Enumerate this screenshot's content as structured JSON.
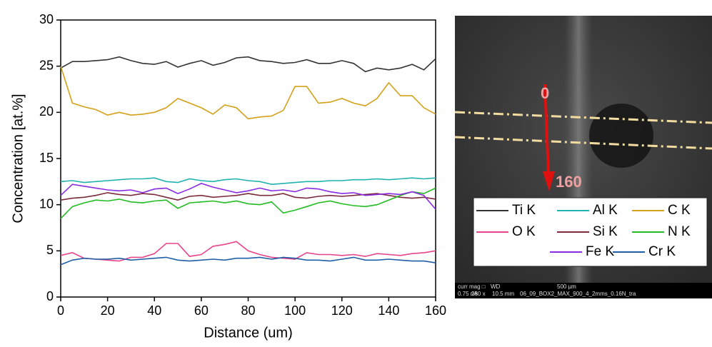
{
  "chart_data": {
    "type": "line",
    "x_label": "Distance (um)",
    "y_label": "Concentration [at.%]",
    "xlim": [
      0,
      160
    ],
    "ylim": [
      0,
      30
    ],
    "xticks": [
      0,
      20,
      40,
      60,
      80,
      100,
      120,
      140,
      160
    ],
    "yticks": [
      0,
      5,
      10,
      15,
      20,
      25,
      30
    ],
    "x": [
      0,
      5,
      10,
      15,
      20,
      25,
      30,
      35,
      40,
      45,
      50,
      55,
      60,
      65,
      70,
      75,
      80,
      85,
      90,
      95,
      100,
      105,
      110,
      115,
      120,
      125,
      130,
      135,
      140,
      145,
      150,
      155,
      160
    ],
    "series": [
      {
        "name": "Ti K",
        "color": "#333333",
        "values": [
          24.8,
          25.5,
          25.5,
          25.6,
          25.7,
          26,
          25.6,
          25.3,
          25.2,
          25.5,
          24.9,
          25.3,
          25.6,
          25.1,
          25.4,
          25.9,
          26,
          25.6,
          25.5,
          25.3,
          25.4,
          25.7,
          25.3,
          25.3,
          25.6,
          25.3,
          24.4,
          24.8,
          24.6,
          24.8,
          25.2,
          24.6,
          25.8
        ]
      },
      {
        "name": "Al K",
        "color": "#20b2b0",
        "values": [
          12.5,
          12.6,
          12.4,
          12.5,
          12.6,
          12.7,
          12.8,
          12.8,
          12.9,
          12.5,
          12.4,
          12.8,
          12.6,
          12.5,
          12.7,
          12.8,
          12.6,
          12.5,
          12.2,
          12.3,
          12.4,
          12.5,
          12.5,
          12.6,
          12.6,
          12.7,
          12.7,
          12.8,
          12.7,
          12.8,
          12.9,
          12.8,
          12.9
        ]
      },
      {
        "name": "C K",
        "color": "#d4a017",
        "values": [
          25,
          21,
          20.6,
          20.3,
          19.7,
          20,
          19.7,
          19.8,
          20,
          20.5,
          21.5,
          21,
          20.5,
          19.8,
          20.8,
          20.5,
          19.3,
          19.5,
          19.6,
          20.2,
          22.8,
          22.8,
          21,
          21.1,
          21.5,
          21,
          20.7,
          21.5,
          23.2,
          21.8,
          21.8,
          20.5,
          19.8
        ]
      },
      {
        "name": "O K",
        "color": "#e8438c",
        "values": [
          4.5,
          4.8,
          4.2,
          4.1,
          4,
          3.9,
          4.3,
          4.3,
          4.7,
          5.8,
          5.8,
          4.4,
          4.6,
          5.5,
          5.7,
          6,
          5,
          4.6,
          4.3,
          4.2,
          4.1,
          4.8,
          4.6,
          4.6,
          4.5,
          4.6,
          4.4,
          4.7,
          4.6,
          4.5,
          4.7,
          4.8,
          5
        ]
      },
      {
        "name": "Si K",
        "color": "#7b2a3a",
        "values": [
          10.5,
          10.7,
          10.8,
          11,
          11.3,
          11.1,
          11,
          11.2,
          11.1,
          10.8,
          10.5,
          10.9,
          11,
          10.8,
          10.9,
          11,
          11.2,
          11,
          11,
          11.2,
          10.8,
          10.7,
          10.9,
          11,
          10.9,
          11,
          11.1,
          11.2,
          11,
          10.8,
          10.7,
          10.8,
          10.6
        ]
      },
      {
        "name": "N K",
        "color": "#22bb22",
        "values": [
          8.5,
          9.8,
          10.2,
          10.5,
          10.4,
          10.6,
          10.3,
          10.2,
          10.4,
          10.5,
          9.6,
          10.2,
          10.3,
          10.4,
          10.2,
          10.4,
          10.1,
          10,
          10.3,
          9.1,
          9.4,
          9.8,
          10.2,
          10.4,
          10.1,
          9.9,
          9.8,
          10,
          10.5,
          11,
          11.4,
          11.2,
          11.8
        ]
      },
      {
        "name": "Fe K",
        "color": "#8a2be2",
        "values": [
          11,
          12.2,
          12,
          11.8,
          11.6,
          11.5,
          11.6,
          11.3,
          11.7,
          11.8,
          11.2,
          11.7,
          12.3,
          11.9,
          11.6,
          11.3,
          11.5,
          11.8,
          11.5,
          11.6,
          11.4,
          11.8,
          11.7,
          11.4,
          11.2,
          11.3,
          11,
          11.1,
          11.2,
          11.1,
          11.4,
          11,
          9.5
        ]
      },
      {
        "name": "Cr K",
        "color": "#1f5fa8",
        "values": [
          3.5,
          4,
          4.2,
          4.1,
          4.1,
          4.2,
          4,
          4.1,
          4.2,
          4.3,
          4,
          3.9,
          4,
          4.1,
          4,
          4.2,
          4.2,
          4.3,
          4.1,
          4.3,
          4.2,
          4,
          4,
          3.9,
          4.1,
          4.3,
          4,
          4,
          4.1,
          4,
          3.9,
          3.9,
          3.7
        ]
      }
    ]
  },
  "image": {
    "start_label": "0",
    "end_label": "160",
    "info": [
      "curr",
      "0.75 nA",
      "mag □",
      "280 x",
      "WD",
      "10.5 mm",
      "500 µm",
      "06_09_BOX2_MAX_900_4_2mms_0.16N_tra"
    ]
  }
}
